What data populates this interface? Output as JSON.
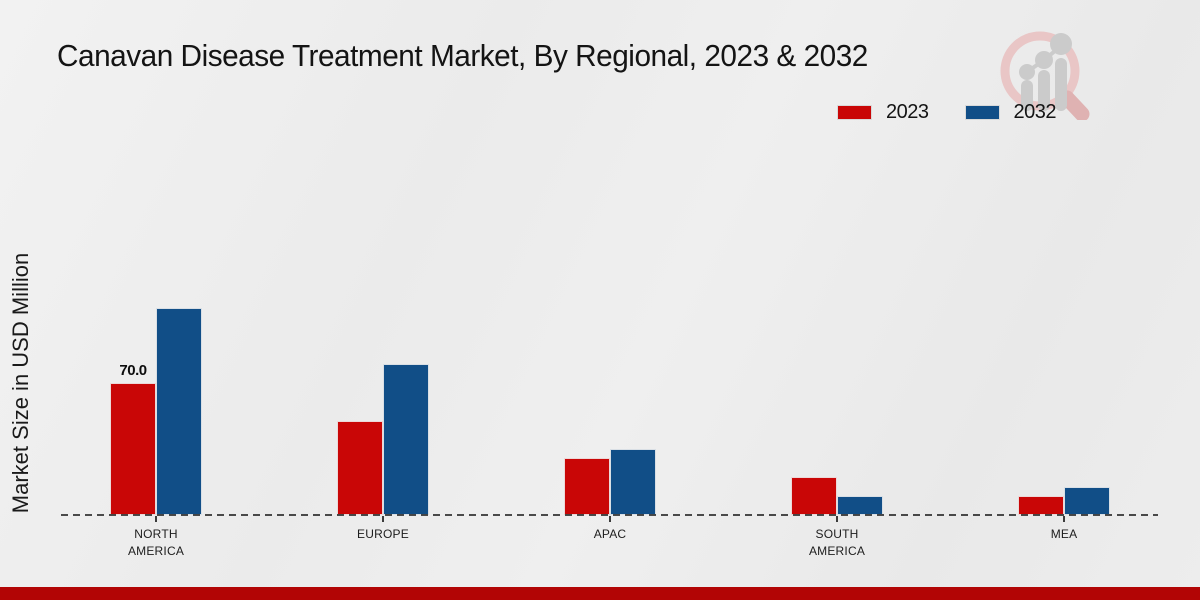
{
  "title": "Canavan Disease Treatment Market, By Regional, 2023 & 2032",
  "ylabel": "Market Size in USD Million",
  "legend": {
    "items": [
      {
        "label": "2023",
        "color": "#c90606"
      },
      {
        "label": "2032",
        "color": "#114e87"
      }
    ]
  },
  "colors": {
    "bar_2023": "#c90606",
    "bar_2032": "#114e87",
    "footer_band": "#b20505",
    "baseline": "#4f4f4f",
    "background": "#ededed"
  },
  "chart_data": {
    "type": "bar",
    "title": "Canavan Disease Treatment Market, By Regional, 2023 & 2032",
    "xlabel": "",
    "ylabel": "Market Size in USD Million",
    "categories": [
      "NORTH AMERICA",
      "EUROPE",
      "APAC",
      "SOUTH AMERICA",
      "MEA"
    ],
    "category_lines": [
      [
        "NORTH",
        "AMERICA"
      ],
      [
        "EUROPE"
      ],
      [
        "APAC"
      ],
      [
        "SOUTH",
        "AMERICA"
      ],
      [
        "MEA"
      ]
    ],
    "series": [
      {
        "name": "2023",
        "color": "#c90606",
        "values": [
          70,
          50,
          30,
          20,
          10
        ],
        "labels": [
          "70.0",
          "",
          "",
          "",
          ""
        ]
      },
      {
        "name": "2032",
        "color": "#114e87",
        "values": [
          110,
          80,
          35,
          10,
          15
        ],
        "labels": [
          "",
          "",
          "",
          "",
          ""
        ]
      }
    ],
    "ylim": [
      0,
      117
    ],
    "grid": false,
    "legend_position": "top-right",
    "baseline_style": "dashed",
    "data_label_shown": "70.0 on North America 2023 bar"
  }
}
